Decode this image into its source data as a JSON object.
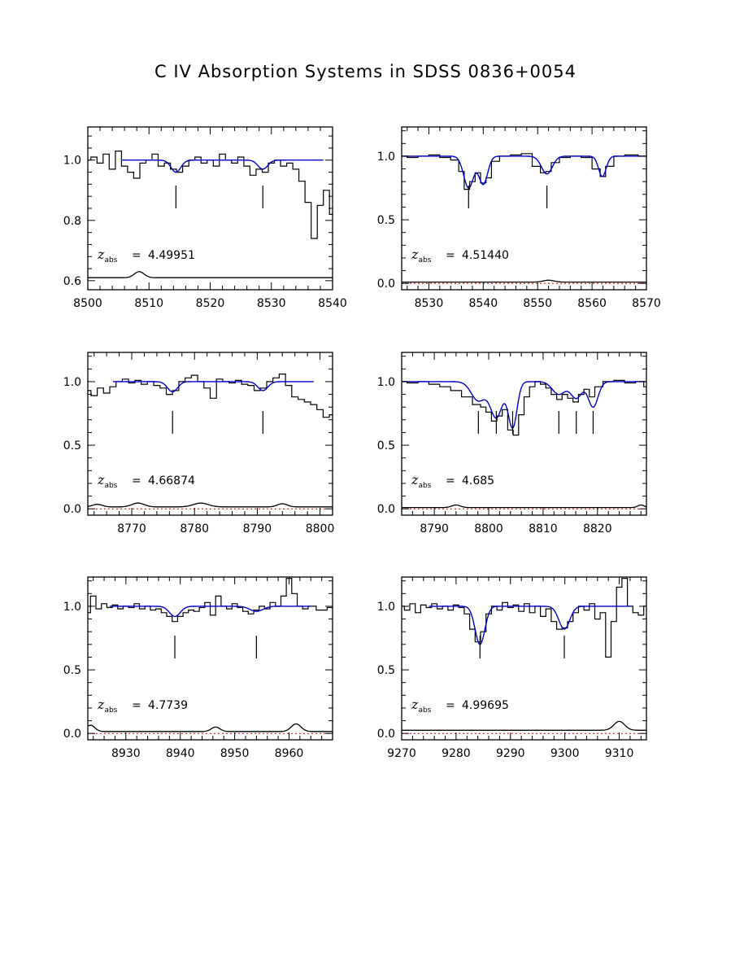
{
  "title": "C IV Absorption Systems in SDSS 0836+0054",
  "colors": {
    "spectrum": "#000000",
    "fit": "#0000cc",
    "zero": "#cc0000"
  },
  "zlabel": {
    "symbol": "z",
    "subscript": "abs",
    "equals": "="
  },
  "chart_data": [
    {
      "type": "line",
      "z_label": "4.49951",
      "xlim": [
        8500,
        8540
      ],
      "ylim": [
        0.57,
        1.11
      ],
      "xticks": [
        "8500",
        "8510",
        "8520",
        "8530",
        "8540"
      ],
      "yticks": [
        "0.6",
        "0.8",
        "1.0"
      ],
      "component_marks": [
        8514.4,
        8528.6
      ],
      "fit_range": [
        8505.5,
        8538.5
      ],
      "fit_lines": [
        {
          "center": 8514.4,
          "depth": 0.04,
          "width": 0.8
        },
        {
          "center": 8528.6,
          "depth": 0.03,
          "width": 0.8
        }
      ],
      "error_level": 0.61,
      "error_bumps": [
        {
          "center": 8508.4,
          "height": 0.02,
          "width": 0.8
        }
      ],
      "spectrum_points": [
        [
          8500,
          1.0
        ],
        [
          8501,
          1.01
        ],
        [
          8502,
          0.99
        ],
        [
          8503,
          1.02
        ],
        [
          8504,
          0.97
        ],
        [
          8505,
          1.03
        ],
        [
          8506,
          0.98
        ],
        [
          8507,
          0.96
        ],
        [
          8508,
          0.94
        ],
        [
          8509,
          0.99
        ],
        [
          8510,
          1.0
        ],
        [
          8511,
          1.02
        ],
        [
          8512,
          0.98
        ],
        [
          8513,
          0.99
        ],
        [
          8514,
          0.97
        ],
        [
          8515,
          0.96
        ],
        [
          8516,
          0.98
        ],
        [
          8517,
          1.0
        ],
        [
          8518,
          1.01
        ],
        [
          8519,
          0.99
        ],
        [
          8520,
          1.0
        ],
        [
          8521,
          0.98
        ],
        [
          8522,
          1.02
        ],
        [
          8523,
          1.0
        ],
        [
          8524,
          0.99
        ],
        [
          8525,
          1.01
        ],
        [
          8526,
          0.98
        ],
        [
          8527,
          0.95
        ],
        [
          8528,
          0.97
        ],
        [
          8529,
          0.96
        ],
        [
          8530,
          0.99
        ],
        [
          8531,
          1.0
        ],
        [
          8532,
          0.98
        ],
        [
          8533,
          0.99
        ],
        [
          8534,
          0.97
        ],
        [
          8535,
          0.93
        ],
        [
          8536,
          0.86
        ],
        [
          8537,
          0.74
        ],
        [
          8538,
          0.85
        ],
        [
          8539,
          0.9
        ],
        [
          8540,
          0.82
        ]
      ]
    },
    {
      "type": "line",
      "z_label": "4.51440",
      "xlim": [
        8525,
        8570
      ],
      "ylim": [
        -0.05,
        1.23
      ],
      "xticks": [
        "8530",
        "8540",
        "8550",
        "8560",
        "8570"
      ],
      "yticks": [
        "0.0",
        "0.5",
        "1.0"
      ],
      "component_marks": [
        8537.3,
        8551.7
      ],
      "fit_range": [
        8525,
        8570
      ],
      "fit_lines": [
        {
          "center": 8537.3,
          "depth": 0.25,
          "width": 0.9
        },
        {
          "center": 8540.0,
          "depth": 0.22,
          "width": 0.8
        },
        {
          "center": 8551.7,
          "depth": 0.14,
          "width": 1.0
        },
        {
          "center": 8561.9,
          "depth": 0.16,
          "width": 0.7
        }
      ],
      "error_level": 0.01,
      "error_bumps": [
        {
          "center": 8552.0,
          "height": 0.015,
          "width": 1.0
        }
      ],
      "spectrum_points": [
        [
          8525,
          1.0
        ],
        [
          8527,
          0.99
        ],
        [
          8529,
          1.0
        ],
        [
          8531,
          1.01
        ],
        [
          8533,
          0.99
        ],
        [
          8535,
          0.97
        ],
        [
          8536,
          0.88
        ],
        [
          8537,
          0.74
        ],
        [
          8538,
          0.8
        ],
        [
          8539,
          0.87
        ],
        [
          8540,
          0.79
        ],
        [
          8541,
          0.83
        ],
        [
          8542,
          0.96
        ],
        [
          8544,
          1.0
        ],
        [
          8546,
          1.01
        ],
        [
          8548,
          1.02
        ],
        [
          8550,
          0.92
        ],
        [
          8551,
          0.87
        ],
        [
          8552,
          0.88
        ],
        [
          8553,
          0.95
        ],
        [
          8555,
          0.99
        ],
        [
          8557,
          1.0
        ],
        [
          8559,
          0.99
        ],
        [
          8561,
          0.9
        ],
        [
          8562,
          0.84
        ],
        [
          8563,
          0.92
        ],
        [
          8565,
          1.0
        ],
        [
          8567,
          1.01
        ],
        [
          8570,
          1.0
        ]
      ]
    },
    {
      "type": "line",
      "z_label": "4.66874",
      "xlim": [
        8763,
        8802
      ],
      "ylim": [
        -0.05,
        1.23
      ],
      "xticks": [
        "8770",
        "8780",
        "8790",
        "8800"
      ],
      "yticks": [
        "0.0",
        "0.5",
        "1.0"
      ],
      "component_marks": [
        8776.5,
        8790.9
      ],
      "fit_range": [
        8767,
        8799
      ],
      "fit_lines": [
        {
          "center": 8776.5,
          "depth": 0.08,
          "width": 0.8
        },
        {
          "center": 8790.9,
          "depth": 0.07,
          "width": 0.8
        }
      ],
      "error_level": 0.015,
      "error_bumps": [
        {
          "center": 8764.5,
          "height": 0.02,
          "width": 0.8
        },
        {
          "center": 8771.0,
          "height": 0.03,
          "width": 1.0
        },
        {
          "center": 8781.0,
          "height": 0.03,
          "width": 1.2
        },
        {
          "center": 8794.0,
          "height": 0.025,
          "width": 0.8
        }
      ],
      "spectrum_points": [
        [
          8763,
          0.93
        ],
        [
          8764,
          0.89
        ],
        [
          8765,
          0.95
        ],
        [
          8766,
          0.91
        ],
        [
          8767,
          0.96
        ],
        [
          8768,
          1.0
        ],
        [
          8769,
          1.02
        ],
        [
          8770,
          0.99
        ],
        [
          8771,
          1.01
        ],
        [
          8772,
          0.98
        ],
        [
          8773,
          1.0
        ],
        [
          8774,
          0.97
        ],
        [
          8775,
          0.95
        ],
        [
          8776,
          0.9
        ],
        [
          8777,
          0.93
        ],
        [
          8778,
          1.0
        ],
        [
          8779,
          1.03
        ],
        [
          8780,
          1.05
        ],
        [
          8781,
          1.0
        ],
        [
          8782,
          0.95
        ],
        [
          8783,
          0.87
        ],
        [
          8784,
          1.02
        ],
        [
          8785,
          1.0
        ],
        [
          8786,
          0.99
        ],
        [
          8787,
          1.01
        ],
        [
          8788,
          0.98
        ],
        [
          8789,
          0.97
        ],
        [
          8790,
          0.93
        ],
        [
          8791,
          0.95
        ],
        [
          8792,
          1.0
        ],
        [
          8793,
          1.03
        ],
        [
          8794,
          1.06
        ],
        [
          8795,
          0.97
        ],
        [
          8796,
          0.88
        ],
        [
          8797,
          0.86
        ],
        [
          8798,
          0.84
        ],
        [
          8799,
          0.82
        ],
        [
          8800,
          0.78
        ],
        [
          8801,
          0.72
        ],
        [
          8802,
          0.74
        ]
      ]
    },
    {
      "type": "line",
      "z_label": "4.685",
      "xlim": [
        8784,
        8829
      ],
      "ylim": [
        -0.05,
        1.23
      ],
      "xticks": [
        "8790",
        "8800",
        "8810",
        "8820"
      ],
      "yticks": [
        "0.0",
        "0.5",
        "1.0"
      ],
      "component_marks": [
        8798.1,
        8801.4,
        8804.4,
        8812.9,
        8816.1,
        8819.2
      ],
      "fit_range": [
        8784,
        8829
      ],
      "fit_lines": [
        {
          "center": 8798.1,
          "depth": 0.15,
          "width": 1.3
        },
        {
          "center": 8801.4,
          "depth": 0.28,
          "width": 1.1
        },
        {
          "center": 8804.4,
          "depth": 0.36,
          "width": 0.8
        },
        {
          "center": 8812.9,
          "depth": 0.1,
          "width": 1.2
        },
        {
          "center": 8816.1,
          "depth": 0.13,
          "width": 1.0
        },
        {
          "center": 8819.2,
          "depth": 0.2,
          "width": 0.9
        }
      ],
      "error_level": 0.01,
      "error_bumps": [
        {
          "center": 8794.0,
          "height": 0.02,
          "width": 0.8
        },
        {
          "center": 8828.0,
          "height": 0.02,
          "width": 0.6
        }
      ],
      "spectrum_points": [
        [
          8784,
          1.0
        ],
        [
          8786,
          0.99
        ],
        [
          8788,
          1.0
        ],
        [
          8790,
          0.98
        ],
        [
          8792,
          0.96
        ],
        [
          8794,
          0.93
        ],
        [
          8796,
          0.88
        ],
        [
          8798,
          0.82
        ],
        [
          8799,
          0.8
        ],
        [
          8800,
          0.76
        ],
        [
          8801,
          0.69
        ],
        [
          8802,
          0.73
        ],
        [
          8803,
          0.78
        ],
        [
          8804,
          0.62
        ],
        [
          8805,
          0.58
        ],
        [
          8806,
          0.74
        ],
        [
          8807,
          0.88
        ],
        [
          8808,
          0.96
        ],
        [
          8809,
          1.0
        ],
        [
          8810,
          0.98
        ],
        [
          8811,
          0.95
        ],
        [
          8812,
          0.9
        ],
        [
          8813,
          0.86
        ],
        [
          8814,
          0.9
        ],
        [
          8815,
          0.87
        ],
        [
          8816,
          0.84
        ],
        [
          8817,
          0.9
        ],
        [
          8818,
          0.94
        ],
        [
          8819,
          0.88
        ],
        [
          8820,
          0.96
        ],
        [
          8822,
          1.0
        ],
        [
          8824,
          1.01
        ],
        [
          8826,
          0.99
        ],
        [
          8828,
          1.0
        ],
        [
          8829,
          0.96
        ]
      ]
    },
    {
      "type": "line",
      "z_label": "4.7739",
      "xlim": [
        8923,
        8968
      ],
      "ylim": [
        -0.05,
        1.23
      ],
      "xticks": [
        "8930",
        "8940",
        "8950",
        "8960"
      ],
      "yticks": [
        "0.0",
        "0.5",
        "1.0"
      ],
      "component_marks": [
        8939.0,
        8954.0
      ],
      "fit_range": [
        8927,
        8964
      ],
      "fit_lines": [
        {
          "center": 8939.0,
          "depth": 0.08,
          "width": 1.0
        },
        {
          "center": 8954.0,
          "depth": 0.04,
          "width": 1.2
        }
      ],
      "error_level": 0.015,
      "error_bumps": [
        {
          "center": 8923.5,
          "height": 0.05,
          "width": 0.8
        },
        {
          "center": 8946.5,
          "height": 0.035,
          "width": 0.8
        },
        {
          "center": 8961.3,
          "height": 0.06,
          "width": 0.9
        }
      ],
      "spectrum_points": [
        [
          8923,
          0.95
        ],
        [
          8924,
          1.08
        ],
        [
          8925,
          0.98
        ],
        [
          8926,
          1.02
        ],
        [
          8927,
          0.99
        ],
        [
          8928,
          1.01
        ],
        [
          8929,
          0.98
        ],
        [
          8930,
          1.0
        ],
        [
          8931,
          0.99
        ],
        [
          8932,
          1.02
        ],
        [
          8933,
          0.98
        ],
        [
          8934,
          1.0
        ],
        [
          8935,
          0.97
        ],
        [
          8936,
          0.98
        ],
        [
          8937,
          0.95
        ],
        [
          8938,
          0.92
        ],
        [
          8939,
          0.88
        ],
        [
          8940,
          0.92
        ],
        [
          8941,
          0.95
        ],
        [
          8942,
          0.97
        ],
        [
          8943,
          0.96
        ],
        [
          8944,
          0.99
        ],
        [
          8945,
          1.03
        ],
        [
          8946,
          0.93
        ],
        [
          8947,
          1.08
        ],
        [
          8948,
          1.0
        ],
        [
          8949,
          0.98
        ],
        [
          8950,
          1.02
        ],
        [
          8951,
          0.99
        ],
        [
          8952,
          0.96
        ],
        [
          8953,
          0.94
        ],
        [
          8954,
          0.97
        ],
        [
          8955,
          1.0
        ],
        [
          8956,
          0.98
        ],
        [
          8957,
          1.03
        ],
        [
          8958,
          1.0
        ],
        [
          8959,
          1.08
        ],
        [
          8960,
          1.22
        ],
        [
          8961,
          1.1
        ],
        [
          8962,
          1.0
        ],
        [
          8963,
          0.98
        ],
        [
          8964,
          1.0
        ],
        [
          8966,
          0.97
        ],
        [
          8968,
          0.99
        ]
      ]
    },
    {
      "type": "line",
      "z_label": "4.99695",
      "xlim": [
        9270,
        9315
      ],
      "ylim": [
        -0.05,
        1.23
      ],
      "xticks": [
        "9270",
        "9280",
        "9290",
        "9300",
        "9310"
      ],
      "yticks": [
        "0.0",
        "0.5",
        "1.0"
      ],
      "component_marks": [
        9284.4,
        9299.9
      ],
      "fit_range": [
        9275,
        9312
      ],
      "fit_lines": [
        {
          "center": 9284.4,
          "depth": 0.3,
          "width": 0.9
        },
        {
          "center": 9299.9,
          "depth": 0.18,
          "width": 1.0
        }
      ],
      "error_level": 0.025,
      "error_bumps": [
        {
          "center": 9310.0,
          "height": 0.07,
          "width": 1.0
        }
      ],
      "spectrum_points": [
        [
          9270,
          1.0
        ],
        [
          9271,
          0.97
        ],
        [
          9272,
          1.02
        ],
        [
          9273,
          0.95
        ],
        [
          9274,
          1.01
        ],
        [
          9275,
          0.99
        ],
        [
          9276,
          1.02
        ],
        [
          9277,
          0.98
        ],
        [
          9278,
          1.0
        ],
        [
          9279,
          0.97
        ],
        [
          9280,
          1.01
        ],
        [
          9281,
          0.99
        ],
        [
          9282,
          0.94
        ],
        [
          9283,
          0.82
        ],
        [
          9284,
          0.72
        ],
        [
          9285,
          0.8
        ],
        [
          9286,
          0.94
        ],
        [
          9287,
          1.0
        ],
        [
          9288,
          0.97
        ],
        [
          9289,
          1.03
        ],
        [
          9290,
          0.99
        ],
        [
          9291,
          1.01
        ],
        [
          9292,
          0.96
        ],
        [
          9293,
          1.02
        ],
        [
          9294,
          0.95
        ],
        [
          9295,
          1.0
        ],
        [
          9296,
          0.92
        ],
        [
          9297,
          0.98
        ],
        [
          9298,
          0.88
        ],
        [
          9299,
          0.82
        ],
        [
          9300,
          0.83
        ],
        [
          9301,
          0.88
        ],
        [
          9302,
          0.95
        ],
        [
          9303,
          1.0
        ],
        [
          9304,
          0.97
        ],
        [
          9305,
          1.02
        ],
        [
          9306,
          0.9
        ],
        [
          9307,
          0.95
        ],
        [
          9308,
          0.6
        ],
        [
          9309,
          0.88
        ],
        [
          9310,
          1.15
        ],
        [
          9311,
          1.22
        ],
        [
          9312,
          1.0
        ],
        [
          9313,
          0.95
        ],
        [
          9314,
          0.93
        ],
        [
          9315,
          1.0
        ]
      ]
    }
  ]
}
